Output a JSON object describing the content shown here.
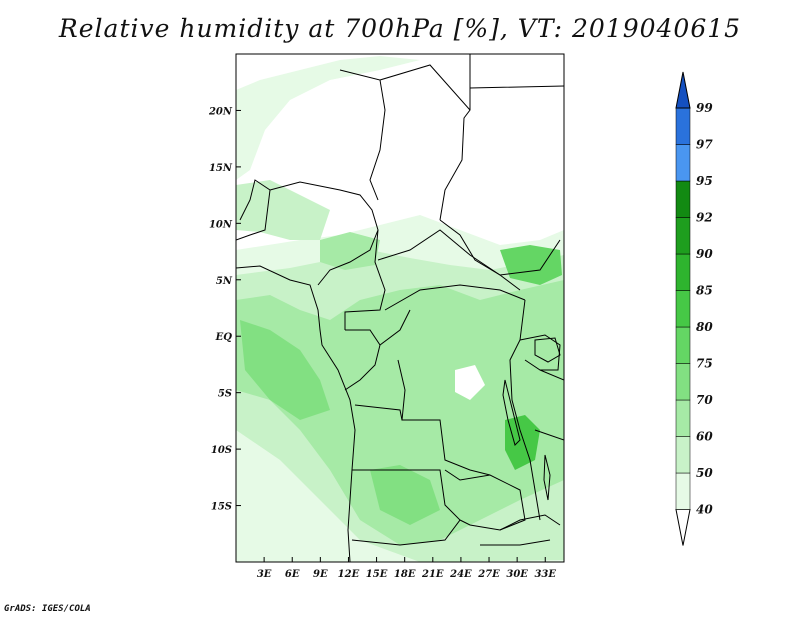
{
  "title": "Relative humidity at 700hPa [%], VT: 2019040615",
  "credit": "GrADS: IGES/COLA",
  "map": {
    "lon_range": [
      0,
      35
    ],
    "lat_range": [
      -20,
      25
    ],
    "lon_ticks": [
      {
        "value": 3,
        "label": "3E"
      },
      {
        "value": 6,
        "label": "6E"
      },
      {
        "value": 9,
        "label": "9E"
      },
      {
        "value": 12,
        "label": "12E"
      },
      {
        "value": 15,
        "label": "15E"
      },
      {
        "value": 18,
        "label": "18E"
      },
      {
        "value": 21,
        "label": "21E"
      },
      {
        "value": 24,
        "label": "24E"
      },
      {
        "value": 27,
        "label": "27E"
      },
      {
        "value": 30,
        "label": "30E"
      },
      {
        "value": 33,
        "label": "33E"
      }
    ],
    "lat_ticks": [
      {
        "value": 20,
        "label": "20N"
      },
      {
        "value": 15,
        "label": "15N"
      },
      {
        "value": 10,
        "label": "10N"
      },
      {
        "value": 5,
        "label": "5N"
      },
      {
        "value": 0,
        "label": "EQ"
      },
      {
        "value": -5,
        "label": "5S"
      },
      {
        "value": -10,
        "label": "10S"
      },
      {
        "value": -15,
        "label": "15S"
      }
    ]
  },
  "colorbar": {
    "labels": [
      "40",
      "50",
      "60",
      "70",
      "75",
      "80",
      "85",
      "90",
      "92",
      "95",
      "97",
      "99"
    ],
    "colors": [
      "#ffffff",
      "#e6fae6",
      "#c8f2c8",
      "#a6eaa6",
      "#82e082",
      "#64d664",
      "#46c846",
      "#2eb42e",
      "#1e9e1e",
      "#128a12",
      "#4a96f0",
      "#2a72dc",
      "#1450c0"
    ]
  },
  "colors": {
    "land": "#ffffff",
    "border": "#000000"
  }
}
